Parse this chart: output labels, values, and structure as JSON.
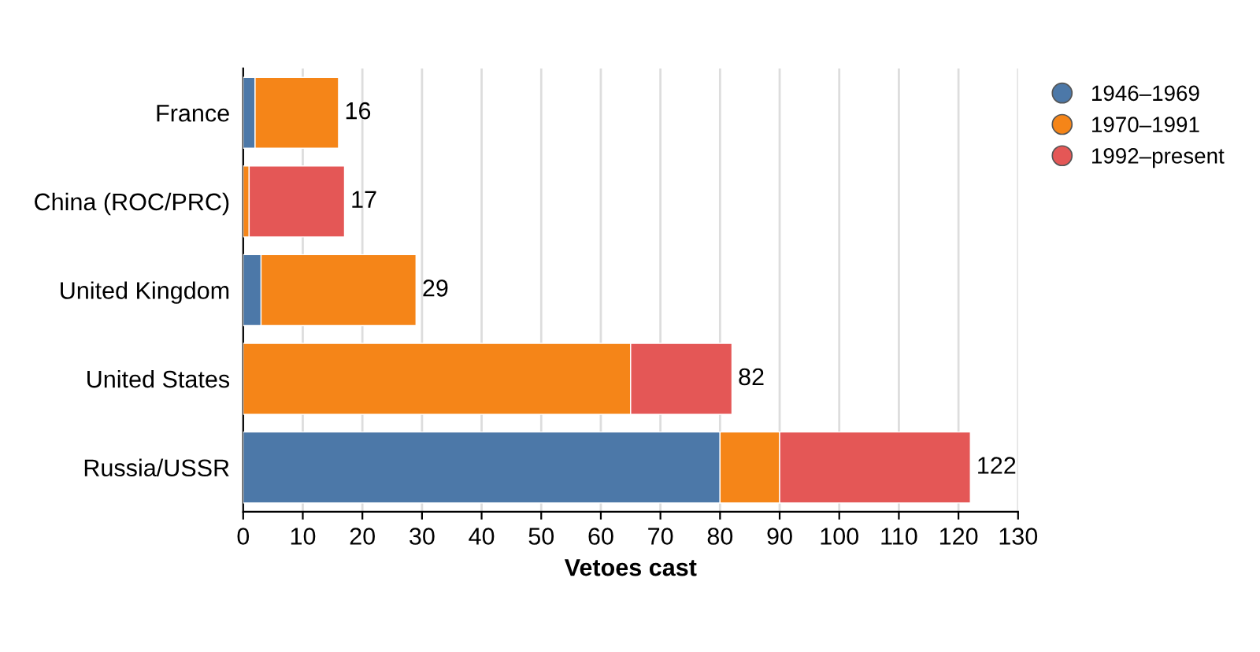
{
  "chart_data": {
    "type": "bar",
    "orientation": "horizontal",
    "stacked": true,
    "xlabel": "Vetoes cast",
    "categories": [
      "France",
      "China (ROC/PRC)",
      "United Kingdom",
      "United States",
      "Russia/USSR"
    ],
    "series": [
      {
        "name": "1946–1969",
        "color": "#4c78a8",
        "values": [
          2,
          null,
          3,
          null,
          80
        ]
      },
      {
        "name": "1970–1991",
        "color": "#f58518",
        "values": [
          14,
          1,
          26,
          65,
          10
        ]
      },
      {
        "name": "1992–present",
        "color": "#e45756",
        "values": [
          null,
          16,
          null,
          17,
          32
        ]
      }
    ],
    "totals": [
      "16",
      "17",
      "29",
      "82",
      "122"
    ],
    "xlim": [
      0,
      130
    ],
    "xticks": [
      0,
      10,
      20,
      30,
      40,
      50,
      60,
      70,
      80,
      90,
      100,
      110,
      120,
      130
    ],
    "grid": "x",
    "legend": "top right",
    "marker": "circle"
  }
}
